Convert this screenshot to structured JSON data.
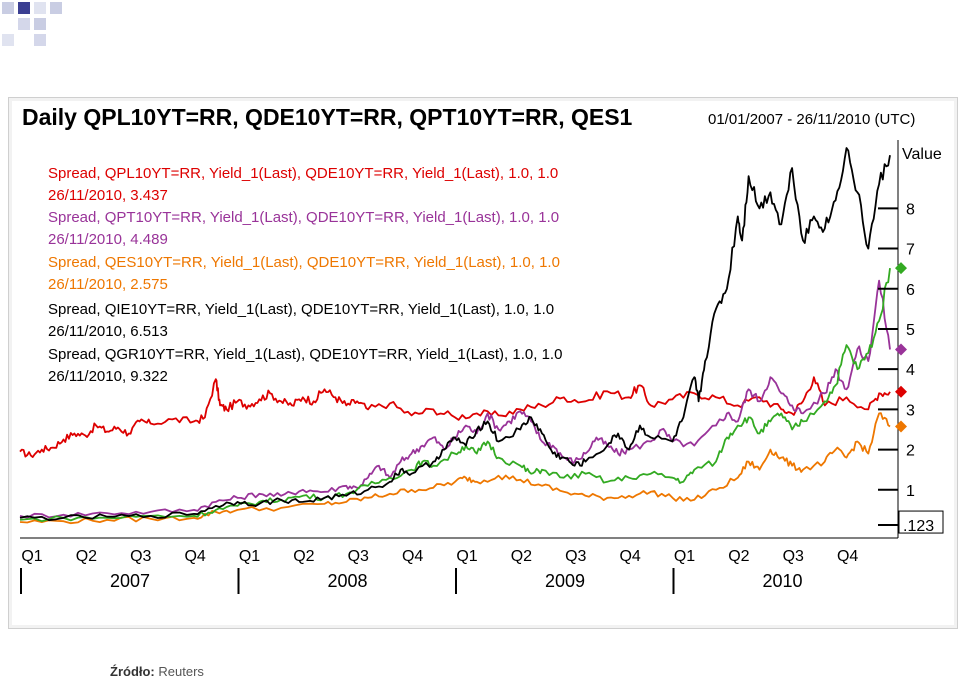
{
  "chart_data": {
    "type": "line",
    "title": "Daily QPL10YT=RR, QDE10YT=RR, QPT10YT=RR, QES1",
    "date_range": "01/01/2007 - 26/11/2010 (UTC)",
    "y_axis_title": "Value",
    "y_ticks": [
      "8",
      "7",
      "6",
      "5",
      "4",
      "3",
      "2",
      "1",
      ".123"
    ],
    "y_tick_values": [
      8,
      7,
      6,
      5,
      4,
      3,
      2,
      1,
      0.123
    ],
    "quarter_labels": [
      "Q1",
      "Q2",
      "Q3",
      "Q4",
      "Q1",
      "Q2",
      "Q3",
      "Q4",
      "Q1",
      "Q2",
      "Q3",
      "Q4",
      "Q1",
      "Q2",
      "Q3",
      "Q4"
    ],
    "years": [
      "2007",
      "2008",
      "2009",
      "2010"
    ],
    "series": [
      {
        "name": "QPL10YT=RR",
        "legend_line1": "Spread, QPL10YT=RR, Yield_1(Last), QDE10YT=RR, Yield_1(Last),  1.0, 1.0",
        "legend_line2": "26/11/2010, 3.437",
        "color": "#dd0000",
        "marker": "diamond",
        "last": 3.437,
        "points": [
          [
            0,
            1.95
          ],
          [
            0.05,
            1.85
          ],
          [
            0.1,
            2.0
          ],
          [
            0.15,
            2.05
          ],
          [
            0.2,
            2.25
          ],
          [
            0.25,
            2.4
          ],
          [
            0.3,
            2.35
          ],
          [
            0.35,
            2.6
          ],
          [
            0.4,
            2.45
          ],
          [
            0.45,
            2.55
          ],
          [
            0.5,
            2.4
          ],
          [
            0.55,
            2.7
          ],
          [
            0.6,
            2.65
          ],
          [
            0.7,
            2.75
          ],
          [
            0.8,
            2.7
          ],
          [
            0.85,
            2.8
          ],
          [
            0.9,
            3.75
          ],
          [
            0.92,
            3.1
          ],
          [
            0.95,
            3.0
          ],
          [
            1.0,
            3.2
          ],
          [
            1.05,
            3.1
          ],
          [
            1.1,
            3.25
          ],
          [
            1.15,
            3.4
          ],
          [
            1.2,
            3.2
          ],
          [
            1.25,
            3.1
          ],
          [
            1.3,
            3.3
          ],
          [
            1.35,
            3.2
          ],
          [
            1.4,
            3.5
          ],
          [
            1.45,
            3.3
          ],
          [
            1.5,
            3.1
          ],
          [
            1.55,
            3.2
          ],
          [
            1.6,
            3.0
          ],
          [
            1.7,
            3.15
          ],
          [
            1.8,
            2.85
          ],
          [
            1.9,
            3.0
          ],
          [
            2.0,
            2.8
          ],
          [
            2.1,
            2.9
          ],
          [
            2.2,
            2.85
          ],
          [
            2.3,
            3.0
          ],
          [
            2.4,
            3.1
          ],
          [
            2.5,
            3.3
          ],
          [
            2.6,
            3.2
          ],
          [
            2.7,
            3.45
          ],
          [
            2.8,
            3.3
          ],
          [
            2.85,
            3.6
          ],
          [
            2.9,
            3.1
          ],
          [
            3.0,
            3.25
          ],
          [
            3.1,
            3.4
          ],
          [
            3.2,
            3.3
          ],
          [
            3.3,
            3.1
          ],
          [
            3.4,
            3.3
          ],
          [
            3.5,
            3.0
          ],
          [
            3.55,
            2.9
          ],
          [
            3.6,
            3.2
          ],
          [
            3.65,
            3.8
          ],
          [
            3.7,
            3.1
          ],
          [
            3.8,
            3.3
          ],
          [
            3.9,
            3.0
          ],
          [
            3.95,
            3.4
          ],
          [
            4.0,
            3.437
          ]
        ]
      },
      {
        "name": "QPT10YT=RR",
        "legend_line1": "Spread, QPT10YT=RR, Yield_1(Last), QDE10YT=RR, Yield_1(Last),  1.0, 1.0",
        "legend_line2": "26/11/2010, 4.489",
        "color": "#993399",
        "marker": "diamond",
        "last": 4.489,
        "points": [
          [
            0,
            0.35
          ],
          [
            0.2,
            0.38
          ],
          [
            0.4,
            0.42
          ],
          [
            0.6,
            0.45
          ],
          [
            0.8,
            0.5
          ],
          [
            0.9,
            0.7
          ],
          [
            1.0,
            0.8
          ],
          [
            1.1,
            0.9
          ],
          [
            1.2,
            0.85
          ],
          [
            1.3,
            1.0
          ],
          [
            1.4,
            0.95
          ],
          [
            1.5,
            1.1
          ],
          [
            1.55,
            1.05
          ],
          [
            1.6,
            1.3
          ],
          [
            1.65,
            1.6
          ],
          [
            1.7,
            1.3
          ],
          [
            1.75,
            1.7
          ],
          [
            1.8,
            1.9
          ],
          [
            1.85,
            2.1
          ],
          [
            1.9,
            2.3
          ],
          [
            1.95,
            2.0
          ],
          [
            2.0,
            2.3
          ],
          [
            2.05,
            2.6
          ],
          [
            2.1,
            2.4
          ],
          [
            2.15,
            2.9
          ],
          [
            2.2,
            2.5
          ],
          [
            2.25,
            2.7
          ],
          [
            2.3,
            2.95
          ],
          [
            2.35,
            2.7
          ],
          [
            2.4,
            2.2
          ],
          [
            2.45,
            2.1
          ],
          [
            2.5,
            1.8
          ],
          [
            2.55,
            1.7
          ],
          [
            2.6,
            1.9
          ],
          [
            2.65,
            2.3
          ],
          [
            2.7,
            2.1
          ],
          [
            2.75,
            1.9
          ],
          [
            2.8,
            2.0
          ],
          [
            2.9,
            2.2
          ],
          [
            2.95,
            2.5
          ],
          [
            3.0,
            2.2
          ],
          [
            3.1,
            2.1
          ],
          [
            3.2,
            2.6
          ],
          [
            3.25,
            2.9
          ],
          [
            3.3,
            2.7
          ],
          [
            3.35,
            3.5
          ],
          [
            3.4,
            3.2
          ],
          [
            3.45,
            3.8
          ],
          [
            3.5,
            3.4
          ],
          [
            3.55,
            3.1
          ],
          [
            3.6,
            2.9
          ],
          [
            3.7,
            3.4
          ],
          [
            3.75,
            4.0
          ],
          [
            3.8,
            3.5
          ],
          [
            3.85,
            4.5
          ],
          [
            3.9,
            4.2
          ],
          [
            3.95,
            6.2
          ],
          [
            4.0,
            4.489
          ]
        ]
      },
      {
        "name": "QES10YT=RR",
        "legend_line1": "Spread, QES10YT=RR, Yield_1(Last), QDE10YT=RR, Yield_1(Last),  1.0, 1.0",
        "legend_line2": "26/11/2010, 2.575",
        "color": "#ee7700",
        "marker": "diamond",
        "last": 2.575,
        "points": [
          [
            0,
            0.2
          ],
          [
            0.2,
            0.22
          ],
          [
            0.4,
            0.25
          ],
          [
            0.6,
            0.28
          ],
          [
            0.8,
            0.3
          ],
          [
            0.9,
            0.45
          ],
          [
            1.0,
            0.5
          ],
          [
            1.2,
            0.55
          ],
          [
            1.4,
            0.65
          ],
          [
            1.5,
            0.7
          ],
          [
            1.6,
            0.8
          ],
          [
            1.7,
            0.9
          ],
          [
            1.8,
            1.0
          ],
          [
            1.9,
            1.05
          ],
          [
            2.0,
            1.2
          ],
          [
            2.05,
            1.3
          ],
          [
            2.1,
            1.2
          ],
          [
            2.2,
            1.35
          ],
          [
            2.3,
            1.25
          ],
          [
            2.4,
            1.1
          ],
          [
            2.5,
            0.95
          ],
          [
            2.6,
            0.85
          ],
          [
            2.7,
            0.8
          ],
          [
            2.8,
            0.85
          ],
          [
            2.9,
            0.95
          ],
          [
            3.0,
            0.8
          ],
          [
            3.1,
            0.75
          ],
          [
            3.2,
            1.0
          ],
          [
            3.3,
            1.3
          ],
          [
            3.35,
            1.7
          ],
          [
            3.4,
            1.5
          ],
          [
            3.45,
            2.0
          ],
          [
            3.5,
            1.8
          ],
          [
            3.55,
            1.6
          ],
          [
            3.6,
            1.5
          ],
          [
            3.7,
            1.7
          ],
          [
            3.75,
            2.0
          ],
          [
            3.8,
            1.8
          ],
          [
            3.85,
            2.2
          ],
          [
            3.9,
            1.9
          ],
          [
            3.95,
            2.9
          ],
          [
            4.0,
            2.575
          ]
        ]
      },
      {
        "name": "QIE10YT=RR",
        "legend_line1": "Spread, QIE10YT=RR, Yield_1(Last), QDE10YT=RR, Yield_1(Last),  1.0, 1.0",
        "legend_line2": "26/11/2010, 6.513",
        "color": "#33aa22",
        "marker": "diamond",
        "last": 6.513,
        "points": [
          [
            0,
            0.25
          ],
          [
            0.2,
            0.3
          ],
          [
            0.4,
            0.3
          ],
          [
            0.6,
            0.35
          ],
          [
            0.8,
            0.35
          ],
          [
            0.9,
            0.5
          ],
          [
            1.0,
            0.6
          ],
          [
            1.1,
            0.7
          ],
          [
            1.2,
            0.75
          ],
          [
            1.3,
            0.85
          ],
          [
            1.4,
            0.8
          ],
          [
            1.5,
            0.9
          ],
          [
            1.6,
            1.1
          ],
          [
            1.7,
            1.3
          ],
          [
            1.8,
            1.5
          ],
          [
            1.85,
            1.7
          ],
          [
            1.9,
            1.6
          ],
          [
            2.0,
            1.9
          ],
          [
            2.05,
            2.1
          ],
          [
            2.1,
            1.9
          ],
          [
            2.15,
            2.2
          ],
          [
            2.2,
            1.8
          ],
          [
            2.3,
            1.6
          ],
          [
            2.35,
            1.4
          ],
          [
            2.4,
            1.5
          ],
          [
            2.5,
            1.3
          ],
          [
            2.6,
            1.4
          ],
          [
            2.7,
            1.2
          ],
          [
            2.8,
            1.3
          ],
          [
            2.9,
            1.4
          ],
          [
            3.0,
            1.3
          ],
          [
            3.05,
            1.2
          ],
          [
            3.1,
            1.5
          ],
          [
            3.2,
            1.7
          ],
          [
            3.25,
            2.3
          ],
          [
            3.3,
            2.6
          ],
          [
            3.35,
            2.8
          ],
          [
            3.4,
            2.4
          ],
          [
            3.45,
            2.7
          ],
          [
            3.5,
            2.9
          ],
          [
            3.55,
            2.5
          ],
          [
            3.6,
            2.7
          ],
          [
            3.7,
            3.2
          ],
          [
            3.75,
            3.6
          ],
          [
            3.8,
            4.6
          ],
          [
            3.85,
            4.0
          ],
          [
            3.9,
            4.4
          ],
          [
            3.95,
            5.2
          ],
          [
            4.0,
            6.513
          ]
        ]
      },
      {
        "name": "QGR10YT=RR",
        "legend_line1": "Spread, QGR10YT=RR, Yield_1(Last), QDE10YT=RR, Yield_1(Last),  1.0, 1.0",
        "legend_line2": "26/11/2010, 9.322",
        "color": "#000000",
        "marker": "none",
        "last": 9.322,
        "points": [
          [
            0,
            0.3
          ],
          [
            0.2,
            0.3
          ],
          [
            0.4,
            0.33
          ],
          [
            0.6,
            0.35
          ],
          [
            0.8,
            0.4
          ],
          [
            0.9,
            0.6
          ],
          [
            1.0,
            0.7
          ],
          [
            1.1,
            0.65
          ],
          [
            1.2,
            0.75
          ],
          [
            1.3,
            0.7
          ],
          [
            1.4,
            0.8
          ],
          [
            1.5,
            0.85
          ],
          [
            1.6,
            1.0
          ],
          [
            1.7,
            1.2
          ],
          [
            1.75,
            1.5
          ],
          [
            1.8,
            1.4
          ],
          [
            1.9,
            1.7
          ],
          [
            1.95,
            2.0
          ],
          [
            2.0,
            2.3
          ],
          [
            2.05,
            2.1
          ],
          [
            2.1,
            2.5
          ],
          [
            2.15,
            2.7
          ],
          [
            2.2,
            2.2
          ],
          [
            2.3,
            2.5
          ],
          [
            2.35,
            2.8
          ],
          [
            2.4,
            2.4
          ],
          [
            2.45,
            1.9
          ],
          [
            2.5,
            1.8
          ],
          [
            2.55,
            1.6
          ],
          [
            2.6,
            1.7
          ],
          [
            2.7,
            2.1
          ],
          [
            2.75,
            2.4
          ],
          [
            2.8,
            2.0
          ],
          [
            2.85,
            2.6
          ],
          [
            2.9,
            2.3
          ],
          [
            3.0,
            2.2
          ],
          [
            3.05,
            2.8
          ],
          [
            3.1,
            3.8
          ],
          [
            3.12,
            3.2
          ],
          [
            3.15,
            4.2
          ],
          [
            3.2,
            5.5
          ],
          [
            3.25,
            6.0
          ],
          [
            3.3,
            7.8
          ],
          [
            3.32,
            7.2
          ],
          [
            3.35,
            8.8
          ],
          [
            3.4,
            8.0
          ],
          [
            3.45,
            8.4
          ],
          [
            3.5,
            7.6
          ],
          [
            3.55,
            9.0
          ],
          [
            3.6,
            7.2
          ],
          [
            3.65,
            7.8
          ],
          [
            3.7,
            7.5
          ],
          [
            3.75,
            8.2
          ],
          [
            3.8,
            9.5
          ],
          [
            3.85,
            8.4
          ],
          [
            3.9,
            7.0
          ],
          [
            3.95,
            8.6
          ],
          [
            4.0,
            9.322
          ]
        ]
      }
    ]
  },
  "source": {
    "label": "Źródło:",
    "value": "Reuters"
  }
}
